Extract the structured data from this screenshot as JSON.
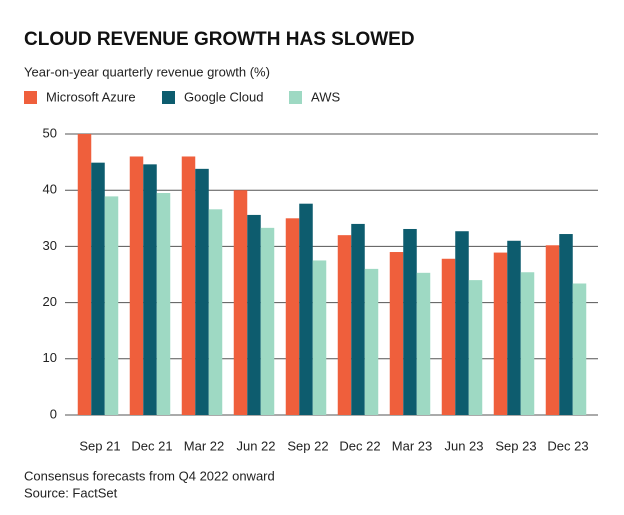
{
  "chart_data": {
    "type": "bar",
    "title": "CLOUD REVENUE GROWTH HAS SLOWED",
    "subtitle": "Year-on-year quarterly revenue growth (%)",
    "categories": [
      "Sep 21",
      "Dec 21",
      "Mar 22",
      "Jun 22",
      "Sep 22",
      "Dec 22",
      "Mar 23",
      "Jun 23",
      "Sep 23",
      "Dec 23"
    ],
    "series": [
      {
        "name": "Microsoft Azure",
        "color": "#ef5f3c",
        "values": [
          50,
          46,
          46,
          40,
          35,
          32,
          29,
          27.8,
          28.9,
          30.2
        ]
      },
      {
        "name": "Google Cloud",
        "color": "#0d5c6e",
        "values": [
          44.9,
          44.6,
          43.8,
          35.6,
          37.6,
          34,
          33.1,
          32.7,
          31,
          32.2
        ]
      },
      {
        "name": "AWS",
        "color": "#9ed9c3",
        "values": [
          38.9,
          39.5,
          36.6,
          33.3,
          27.5,
          26,
          25.3,
          24,
          25.4,
          23.4
        ]
      }
    ],
    "ylim": [
      0,
      50
    ],
    "yticks": [
      0,
      10,
      20,
      30,
      40,
      50
    ],
    "grid": true,
    "notes": [
      "Consensus forecasts from Q4 2022 onward",
      "Source: FactSet"
    ]
  }
}
